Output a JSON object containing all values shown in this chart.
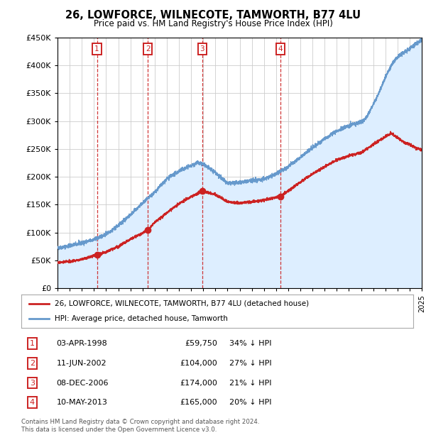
{
  "title": "26, LOWFORCE, WILNECOTE, TAMWORTH, B77 4LU",
  "subtitle": "Price paid vs. HM Land Registry's House Price Index (HPI)",
  "hpi_label": "HPI: Average price, detached house, Tamworth",
  "property_label": "26, LOWFORCE, WILNECOTE, TAMWORTH, B77 4LU (detached house)",
  "footer1": "Contains HM Land Registry data © Crown copyright and database right 2024.",
  "footer2": "This data is licensed under the Open Government Licence v3.0.",
  "ylim": [
    0,
    450000
  ],
  "yticks": [
    0,
    50000,
    100000,
    150000,
    200000,
    250000,
    300000,
    350000,
    400000,
    450000
  ],
  "x_start_year": 1995,
  "x_end_year": 2025,
  "transactions": [
    {
      "num": 1,
      "date": "03-APR-1998",
      "year": 1998.25,
      "price": 59750,
      "pct": "34% ↓ HPI"
    },
    {
      "num": 2,
      "date": "11-JUN-2002",
      "year": 2002.44,
      "price": 104000,
      "pct": "27% ↓ HPI"
    },
    {
      "num": 3,
      "date": "08-DEC-2006",
      "year": 2006.92,
      "price": 174000,
      "pct": "21% ↓ HPI"
    },
    {
      "num": 4,
      "date": "10-MAY-2013",
      "year": 2013.36,
      "price": 165000,
      "pct": "20% ↓ HPI"
    }
  ],
  "hpi_color": "#6699cc",
  "hpi_fill_color": "#ddeeff",
  "property_color": "#cc2222",
  "vline_color": "#cc2222",
  "box_color": "#cc2222",
  "grid_color": "#cccccc",
  "bg_color": "#ffffff",
  "hpi_key_years": [
    1995,
    1996,
    1997,
    1998,
    1999,
    2000,
    2001,
    2002,
    2003,
    2004,
    2005,
    2006,
    2006.5,
    2007,
    2007.5,
    2008,
    2008.5,
    2009,
    2010,
    2011,
    2012,
    2013,
    2014,
    2015,
    2016,
    2017,
    2018,
    2019,
    2020,
    2020.5,
    2021,
    2021.5,
    2022,
    2022.5,
    2023,
    2023.5,
    2024,
    2024.5,
    2025
  ],
  "hpi_key_vals": [
    72000,
    76000,
    81000,
    87000,
    97000,
    112000,
    132000,
    152000,
    172000,
    196000,
    210000,
    220000,
    225000,
    222000,
    215000,
    208000,
    197000,
    188000,
    190000,
    193000,
    196000,
    205000,
    218000,
    235000,
    252000,
    268000,
    282000,
    292000,
    298000,
    308000,
    330000,
    352000,
    378000,
    400000,
    415000,
    422000,
    430000,
    438000,
    445000
  ],
  "prop_key_years": [
    1995,
    1996,
    1997,
    1998.25,
    1999,
    2000,
    2001,
    2002.44,
    2003,
    2004,
    2005,
    2006,
    2006.92,
    2008,
    2009,
    2010,
    2011,
    2012,
    2013.36,
    2014,
    2015,
    2016,
    2017,
    2018,
    2019,
    2020,
    2021,
    2022,
    2022.5,
    2023,
    2023.5,
    2024,
    2024.5,
    2025
  ],
  "prop_key_vals": [
    46000,
    48000,
    52000,
    59750,
    65000,
    75000,
    88000,
    104000,
    118000,
    135000,
    152000,
    164000,
    174000,
    168000,
    155000,
    153000,
    155000,
    158000,
    165000,
    175000,
    190000,
    205000,
    218000,
    230000,
    238000,
    243000,
    258000,
    272000,
    278000,
    270000,
    262000,
    258000,
    252000,
    248000
  ]
}
